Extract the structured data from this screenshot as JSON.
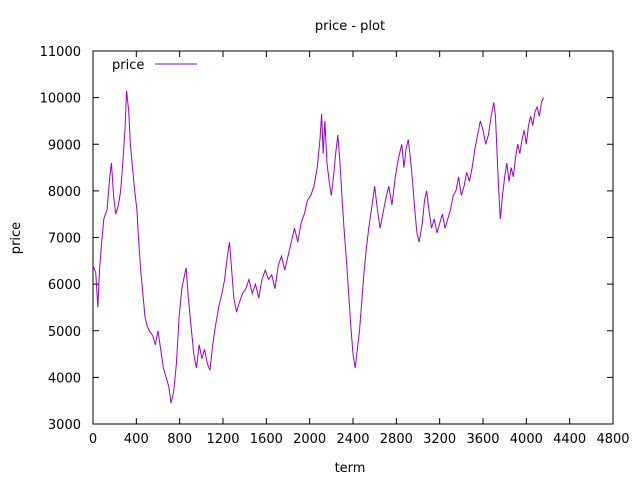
{
  "chart_data": {
    "type": "line",
    "title": "price - plot",
    "xlabel": "term",
    "ylabel": "price",
    "xlim": [
      0,
      4800
    ],
    "ylim": [
      3000,
      11000
    ],
    "x_ticks": [
      0,
      400,
      800,
      1200,
      1600,
      2000,
      2400,
      2800,
      3200,
      3600,
      4000,
      4400,
      4800
    ],
    "y_ticks": [
      3000,
      4000,
      5000,
      6000,
      7000,
      8000,
      9000,
      10000,
      11000
    ],
    "grid": false,
    "legend_position": "top-left",
    "series": [
      {
        "name": "price",
        "color": "#9400d3",
        "points": [
          [
            0,
            6400
          ],
          [
            25,
            6250
          ],
          [
            45,
            5500
          ],
          [
            60,
            6300
          ],
          [
            80,
            6900
          ],
          [
            100,
            7400
          ],
          [
            130,
            7600
          ],
          [
            155,
            8300
          ],
          [
            170,
            8600
          ],
          [
            190,
            7900
          ],
          [
            210,
            7500
          ],
          [
            235,
            7700
          ],
          [
            255,
            8000
          ],
          [
            275,
            8600
          ],
          [
            295,
            9300
          ],
          [
            310,
            10150
          ],
          [
            330,
            9700
          ],
          [
            345,
            9000
          ],
          [
            365,
            8500
          ],
          [
            385,
            8000
          ],
          [
            405,
            7600
          ],
          [
            420,
            7000
          ],
          [
            440,
            6300
          ],
          [
            460,
            5800
          ],
          [
            480,
            5300
          ],
          [
            500,
            5100
          ],
          [
            520,
            5000
          ],
          [
            550,
            4900
          ],
          [
            575,
            4700
          ],
          [
            600,
            5000
          ],
          [
            625,
            4600
          ],
          [
            650,
            4200
          ],
          [
            675,
            4000
          ],
          [
            700,
            3800
          ],
          [
            720,
            3450
          ],
          [
            745,
            3700
          ],
          [
            770,
            4300
          ],
          [
            795,
            5300
          ],
          [
            820,
            5900
          ],
          [
            845,
            6200
          ],
          [
            860,
            6350
          ],
          [
            880,
            5700
          ],
          [
            905,
            5100
          ],
          [
            930,
            4500
          ],
          [
            955,
            4200
          ],
          [
            980,
            4700
          ],
          [
            1005,
            4400
          ],
          [
            1030,
            4600
          ],
          [
            1055,
            4300
          ],
          [
            1080,
            4150
          ],
          [
            1105,
            4700
          ],
          [
            1130,
            5100
          ],
          [
            1160,
            5500
          ],
          [
            1190,
            5800
          ],
          [
            1215,
            6100
          ],
          [
            1240,
            6600
          ],
          [
            1260,
            6900
          ],
          [
            1280,
            6300
          ],
          [
            1300,
            5700
          ],
          [
            1325,
            5400
          ],
          [
            1350,
            5600
          ],
          [
            1380,
            5800
          ],
          [
            1410,
            5900
          ],
          [
            1440,
            6100
          ],
          [
            1470,
            5800
          ],
          [
            1500,
            6000
          ],
          [
            1530,
            5700
          ],
          [
            1560,
            6100
          ],
          [
            1590,
            6300
          ],
          [
            1620,
            6100
          ],
          [
            1650,
            6200
          ],
          [
            1680,
            5900
          ],
          [
            1710,
            6400
          ],
          [
            1740,
            6600
          ],
          [
            1770,
            6300
          ],
          [
            1800,
            6600
          ],
          [
            1830,
            6900
          ],
          [
            1860,
            7200
          ],
          [
            1890,
            6900
          ],
          [
            1920,
            7300
          ],
          [
            1950,
            7500
          ],
          [
            1980,
            7800
          ],
          [
            2010,
            7900
          ],
          [
            2040,
            8100
          ],
          [
            2070,
            8500
          ],
          [
            2095,
            9100
          ],
          [
            2110,
            9650
          ],
          [
            2125,
            8800
          ],
          [
            2140,
            9500
          ],
          [
            2160,
            8600
          ],
          [
            2180,
            8200
          ],
          [
            2200,
            7900
          ],
          [
            2220,
            8300
          ],
          [
            2240,
            8800
          ],
          [
            2260,
            9200
          ],
          [
            2280,
            8600
          ],
          [
            2300,
            7800
          ],
          [
            2320,
            7100
          ],
          [
            2340,
            6500
          ],
          [
            2360,
            5800
          ],
          [
            2380,
            5100
          ],
          [
            2400,
            4500
          ],
          [
            2420,
            4200
          ],
          [
            2440,
            4600
          ],
          [
            2460,
            5000
          ],
          [
            2480,
            5600
          ],
          [
            2500,
            6200
          ],
          [
            2520,
            6700
          ],
          [
            2545,
            7200
          ],
          [
            2570,
            7600
          ],
          [
            2600,
            8100
          ],
          [
            2625,
            7600
          ],
          [
            2650,
            7200
          ],
          [
            2675,
            7500
          ],
          [
            2700,
            7800
          ],
          [
            2730,
            8100
          ],
          [
            2760,
            7700
          ],
          [
            2790,
            8300
          ],
          [
            2820,
            8700
          ],
          [
            2850,
            9000
          ],
          [
            2870,
            8500
          ],
          [
            2890,
            8900
          ],
          [
            2910,
            9100
          ],
          [
            2930,
            8700
          ],
          [
            2950,
            8200
          ],
          [
            2970,
            7600
          ],
          [
            2990,
            7100
          ],
          [
            3010,
            6900
          ],
          [
            3040,
            7300
          ],
          [
            3060,
            7800
          ],
          [
            3080,
            8000
          ],
          [
            3100,
            7600
          ],
          [
            3125,
            7200
          ],
          [
            3150,
            7400
          ],
          [
            3175,
            7100
          ],
          [
            3200,
            7300
          ],
          [
            3225,
            7500
          ],
          [
            3250,
            7200
          ],
          [
            3275,
            7400
          ],
          [
            3300,
            7600
          ],
          [
            3325,
            7900
          ],
          [
            3350,
            8000
          ],
          [
            3375,
            8300
          ],
          [
            3400,
            7900
          ],
          [
            3425,
            8100
          ],
          [
            3450,
            8400
          ],
          [
            3475,
            8200
          ],
          [
            3500,
            8500
          ],
          [
            3525,
            8900
          ],
          [
            3550,
            9200
          ],
          [
            3575,
            9500
          ],
          [
            3600,
            9300
          ],
          [
            3625,
            9000
          ],
          [
            3650,
            9200
          ],
          [
            3675,
            9600
          ],
          [
            3700,
            9900
          ],
          [
            3715,
            9600
          ],
          [
            3730,
            8800
          ],
          [
            3745,
            8000
          ],
          [
            3760,
            7400
          ],
          [
            3780,
            7900
          ],
          [
            3800,
            8300
          ],
          [
            3820,
            8600
          ],
          [
            3840,
            8200
          ],
          [
            3860,
            8500
          ],
          [
            3880,
            8300
          ],
          [
            3900,
            8700
          ],
          [
            3920,
            9000
          ],
          [
            3940,
            8800
          ],
          [
            3960,
            9100
          ],
          [
            3980,
            9300
          ],
          [
            4000,
            9000
          ],
          [
            4020,
            9400
          ],
          [
            4040,
            9600
          ],
          [
            4060,
            9400
          ],
          [
            4080,
            9700
          ],
          [
            4100,
            9800
          ],
          [
            4120,
            9600
          ],
          [
            4140,
            9900
          ],
          [
            4160,
            10000
          ]
        ]
      }
    ]
  }
}
